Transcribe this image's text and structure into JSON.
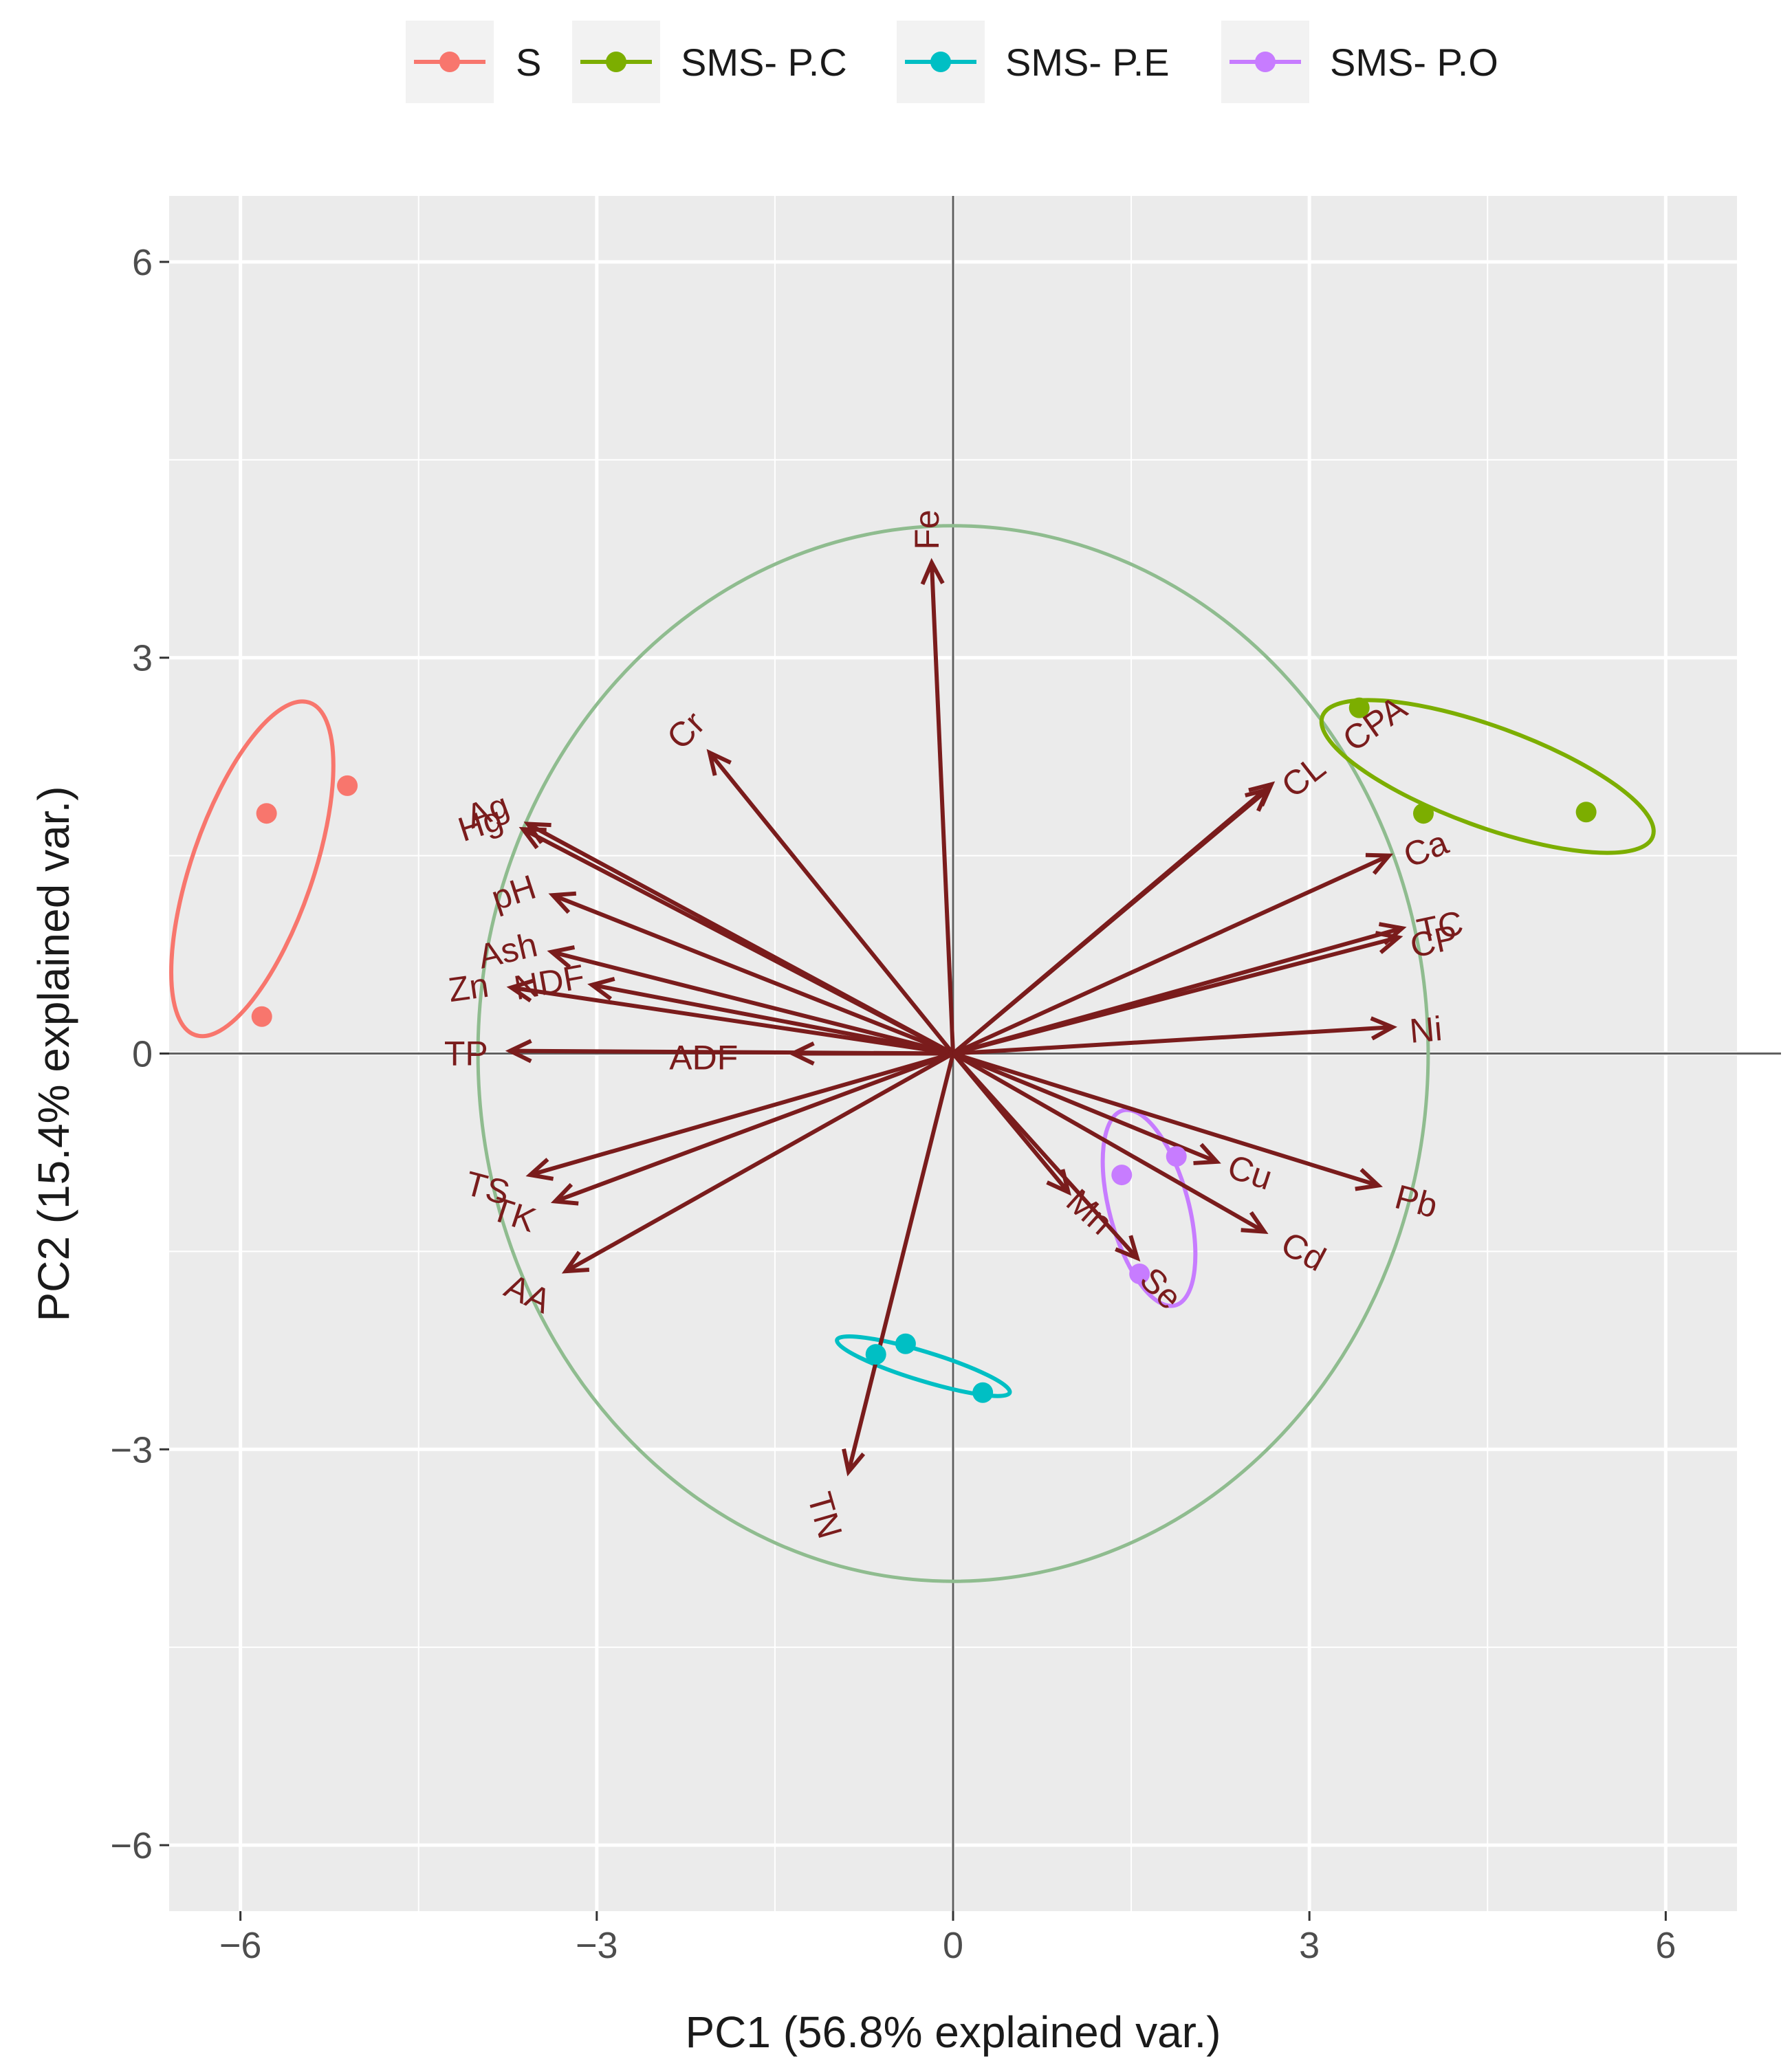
{
  "chart_data": {
    "type": "scatter",
    "subtype": "pca-biplot",
    "xlabel": "PC1 (56.8% explained var.)",
    "ylabel": "PC2 (15.4% explained var.)",
    "xlim": [
      -6.6,
      6.6
    ],
    "ylim": [
      -6.5,
      6.5
    ],
    "xticks": [
      -6,
      -3,
      0,
      3,
      6
    ],
    "yticks": [
      -6,
      -3,
      0,
      3,
      6
    ],
    "xtick_labels": [
      "−6",
      "−3",
      "0",
      "3",
      "6"
    ],
    "ytick_labels": [
      "−6",
      "−3",
      "0",
      "3",
      "6"
    ],
    "grid": true,
    "legend_position": "top",
    "correlation_circle_radius": 4.0,
    "colors": {
      "S": "#f8766d",
      "SMS- P.C": "#7cae00",
      "SMS- P.E": "#00bfc4",
      "SMS- P.O": "#c77cff",
      "arrow": "#7a1c1c",
      "circle": "#8fbc8f"
    },
    "groups": [
      {
        "name": "S",
        "points": [
          [
            -5.78,
            1.82
          ],
          [
            -5.1,
            2.03
          ],
          [
            -5.82,
            0.28
          ]
        ],
        "ellipse": {
          "cx": -5.9,
          "cy": 1.4,
          "rx": 1.48,
          "ry": 0.46,
          "angle": 71
        }
      },
      {
        "name": "SMS- P.C",
        "points": [
          [
            3.42,
            2.62
          ],
          [
            3.96,
            1.82
          ],
          [
            5.33,
            1.83
          ]
        ],
        "ellipse": {
          "cx": 4.5,
          "cy": 2.1,
          "rx": 1.48,
          "ry": 0.38,
          "angle": -20
        }
      },
      {
        "name": "SMS- P.E",
        "points": [
          [
            -0.65,
            -2.28
          ],
          [
            -0.4,
            -2.2
          ],
          [
            0.25,
            -2.57
          ]
        ],
        "ellipse": {
          "cx": -0.25,
          "cy": -2.37,
          "rx": 0.76,
          "ry": 0.11,
          "angle": -17
        }
      },
      {
        "name": "SMS- P.O",
        "points": [
          [
            1.42,
            -0.92
          ],
          [
            1.88,
            -0.78
          ],
          [
            1.57,
            -1.67
          ]
        ],
        "ellipse": {
          "cx": 1.65,
          "cy": -1.17,
          "rx": 0.85,
          "ry": 0.3,
          "angle": -75
        }
      }
    ],
    "variables": [
      {
        "name": "Fe",
        "x": -0.18,
        "y": 3.72,
        "lx": -0.22,
        "ly": 3.97,
        "rot": 90
      },
      {
        "name": "Cr",
        "x": -2.05,
        "y": 2.28,
        "lx": -2.25,
        "ly": 2.45,
        "rot": 45
      },
      {
        "name": "Ag",
        "x": -3.58,
        "y": 1.74,
        "lx": -3.92,
        "ly": 1.84,
        "rot": 20
      },
      {
        "name": "Hg",
        "x": -3.62,
        "y": 1.7,
        "lx": -3.98,
        "ly": 1.74,
        "rot": 18
      },
      {
        "name": "pH",
        "x": -3.37,
        "y": 1.2,
        "lx": -3.7,
        "ly": 1.22,
        "rot": 18
      },
      {
        "name": "Ash",
        "x": -3.38,
        "y": 0.77,
        "lx": -3.75,
        "ly": 0.78,
        "rot": 13
      },
      {
        "name": "NDF",
        "x": -3.04,
        "y": 0.52,
        "lx": -3.4,
        "ly": 0.54,
        "rot": 10
      },
      {
        "name": "Zn",
        "x": -3.72,
        "y": 0.5,
        "lx": -4.08,
        "ly": 0.5,
        "rot": 8
      },
      {
        "name": "ADF",
        "x": -1.35,
        "y": 0.0,
        "lx": -2.1,
        "ly": -0.03,
        "rot": 0
      },
      {
        "name": "TP",
        "x": -3.73,
        "y": 0.02,
        "lx": -4.1,
        "ly": 0.0,
        "rot": 0
      },
      {
        "name": "TS",
        "x": -3.56,
        "y": -0.92,
        "lx": -3.92,
        "ly": -1.02,
        "rot": -15
      },
      {
        "name": "TK",
        "x": -3.35,
        "y": -1.12,
        "lx": -3.7,
        "ly": -1.22,
        "rot": -18
      },
      {
        "name": "AA",
        "x": -3.26,
        "y": -1.65,
        "lx": -3.58,
        "ly": -1.82,
        "rot": -25
      },
      {
        "name": "TN",
        "x": -0.88,
        "y": -3.17,
        "lx": -1.08,
        "ly": -3.5,
        "rot": -74
      },
      {
        "name": "Mn",
        "x": 0.97,
        "y": -1.05,
        "lx": 1.15,
        "ly": -1.2,
        "rot": -42
      },
      {
        "name": "Se",
        "x": 1.55,
        "y": -1.55,
        "lx": 1.75,
        "ly": -1.78,
        "rot": -45
      },
      {
        "name": "Cu",
        "x": 2.22,
        "y": -0.82,
        "lx": 2.5,
        "ly": -0.9,
        "rot": -18
      },
      {
        "name": "Cd",
        "x": 2.62,
        "y": -1.35,
        "lx": 2.95,
        "ly": -1.5,
        "rot": -28
      },
      {
        "name": "Pb",
        "x": 3.58,
        "y": -1.0,
        "lx": 3.9,
        "ly": -1.12,
        "rot": -15
      },
      {
        "name": "CL",
        "x": 2.65,
        "y": 2.0,
        "lx": 2.95,
        "ly": 2.1,
        "rot": 38
      },
      {
        "name": "CPA",
        "x": 2.68,
        "y": 2.04,
        "lx": 3.55,
        "ly": 2.5,
        "rot": 35
      },
      {
        "name": "Ca",
        "x": 3.67,
        "y": 1.5,
        "lx": 3.98,
        "ly": 1.55,
        "rot": 22
      },
      {
        "name": "TC",
        "x": 3.78,
        "y": 0.95,
        "lx": 4.1,
        "ly": 0.96,
        "rot": 12
      },
      {
        "name": "CP",
        "x": 3.75,
        "y": 0.88,
        "lx": 4.05,
        "ly": 0.85,
        "rot": 12
      },
      {
        "name": "Ni",
        "x": 3.7,
        "y": 0.2,
        "lx": 3.98,
        "ly": 0.18,
        "rot": 5
      }
    ]
  }
}
